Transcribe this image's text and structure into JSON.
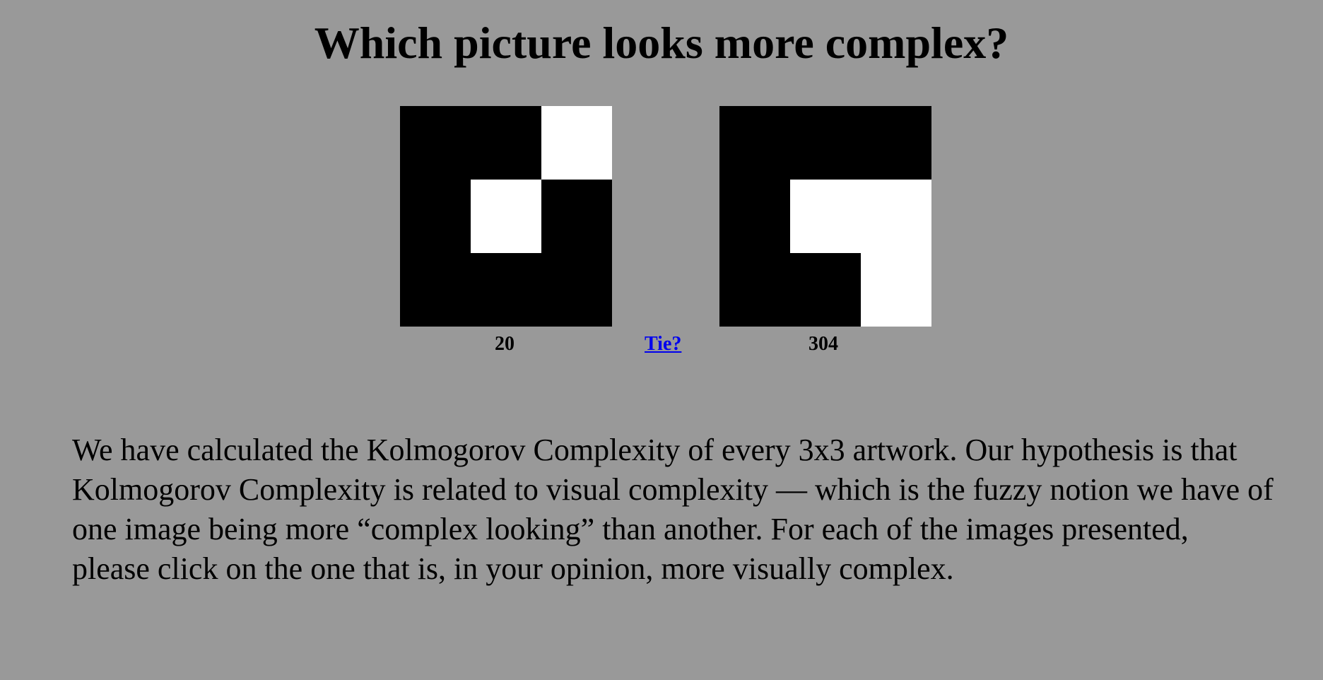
{
  "page": {
    "title": "Which picture looks more complex?",
    "background_color": "#999999"
  },
  "choices": {
    "left": {
      "grid": [
        [
          "b",
          "b",
          "w"
        ],
        [
          "b",
          "w",
          "b"
        ],
        [
          "b",
          "b",
          "b"
        ]
      ],
      "score": "20"
    },
    "tie_label": "Tie?",
    "right": {
      "grid": [
        [
          "b",
          "b",
          "b"
        ],
        [
          "b",
          "w",
          "w"
        ],
        [
          "b",
          "b",
          "w"
        ]
      ],
      "score": "304"
    }
  },
  "description": "We have calculated the Kolmogorov Complexity of every 3x3 artwork. Our hypothesis is that Kolmogorov Complexity is related to visual complexity — which is the fuzzy notion we have of one image being more “complex looking” than another. For each of the images presented, please click on the one that is, in your opinion, more visually complex."
}
